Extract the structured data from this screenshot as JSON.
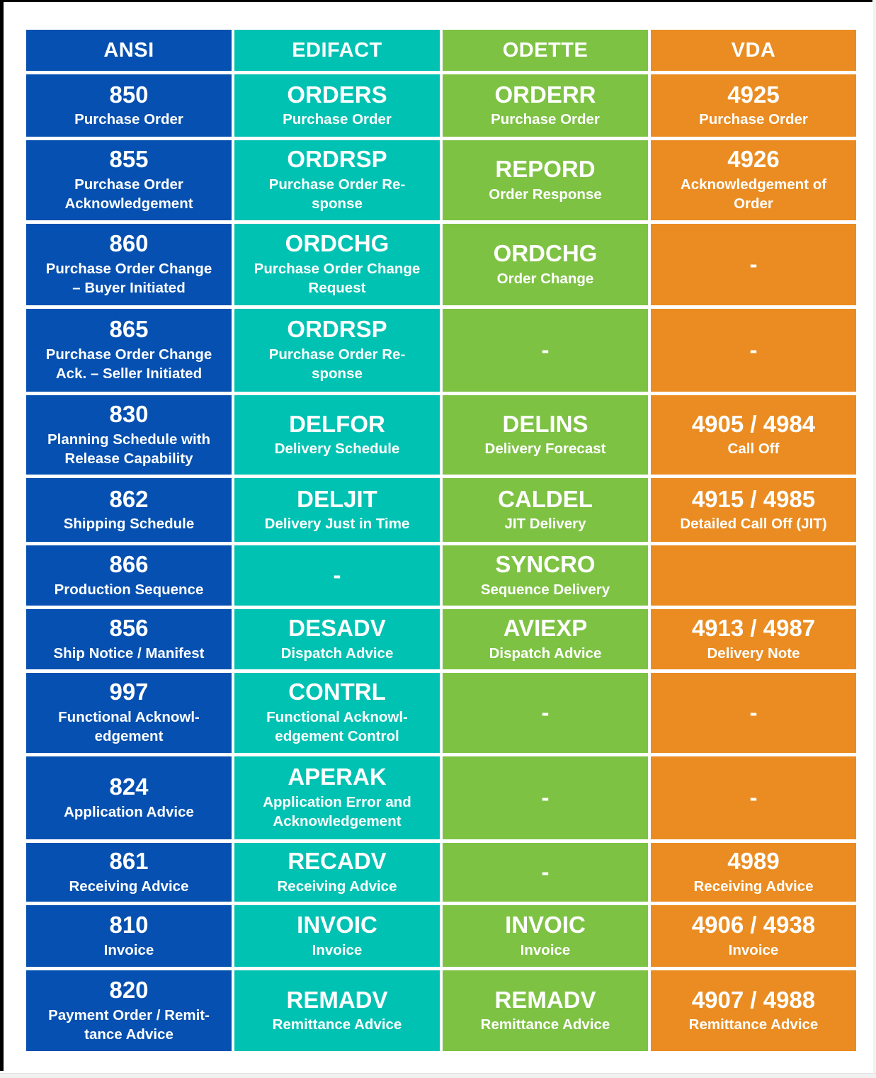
{
  "frame": {
    "edge_color": "#000000",
    "right_strip_color": "#f2f2f2",
    "bottom_strip_color": "#f0f0f0"
  },
  "table": {
    "columns": [
      {
        "id": "ansi",
        "label": "ANSI",
        "color": "#0550b0"
      },
      {
        "id": "edifact",
        "label": "EDIFACT",
        "color": "#00c2b2"
      },
      {
        "id": "odette",
        "label": "ODETTE",
        "color": "#7ec244"
      },
      {
        "id": "vda",
        "label": "VDA",
        "color": "#ea8c21"
      }
    ],
    "text_color": "#ffffff",
    "rows": [
      {
        "cells": [
          {
            "code": "850",
            "desc": "Purchase Order"
          },
          {
            "code": "ORDERS",
            "desc": "Purchase Order"
          },
          {
            "code": "ORDERR",
            "desc": "Purchase Order"
          },
          {
            "code": "4925",
            "desc": "Purchase Order"
          }
        ]
      },
      {
        "cells": [
          {
            "code": "855",
            "desc": "Purchase Order\nAcknowledgement"
          },
          {
            "code": "ORDRSP",
            "desc": "Purchase Order Re-\nsponse"
          },
          {
            "code": "REPORD",
            "desc": "Order Response"
          },
          {
            "code": "4926",
            "desc": "Acknowledgement of\nOrder"
          }
        ]
      },
      {
        "cells": [
          {
            "code": "860",
            "desc": "Purchase Order Change\n– Buyer Initiated"
          },
          {
            "code": "ORDCHG",
            "desc": "Purchase Order Change\nRequest"
          },
          {
            "code": "ORDCHG",
            "desc": "Order Change"
          },
          {
            "code": "-",
            "desc": ""
          }
        ]
      },
      {
        "cells": [
          {
            "code": "865",
            "desc": "Purchase Order Change\nAck. – Seller Initiated"
          },
          {
            "code": "ORDRSP",
            "desc": "Purchase Order Re-\nsponse"
          },
          {
            "code": "-",
            "desc": ""
          },
          {
            "code": "-",
            "desc": ""
          }
        ]
      },
      {
        "cells": [
          {
            "code": "830",
            "desc": "Planning Schedule with\nRelease Capability"
          },
          {
            "code": "DELFOR",
            "desc": "Delivery Schedule"
          },
          {
            "code": "DELINS",
            "desc": "Delivery Forecast"
          },
          {
            "code": "4905 / 4984",
            "desc": "Call Off"
          }
        ]
      },
      {
        "cells": [
          {
            "code": "862",
            "desc": "Shipping Schedule"
          },
          {
            "code": "DELJIT",
            "desc": "Delivery Just in Time"
          },
          {
            "code": "CALDEL",
            "desc": "JIT Delivery"
          },
          {
            "code": "4915 / 4985",
            "desc": "Detailed Call Off (JIT)"
          }
        ]
      },
      {
        "cells": [
          {
            "code": "866",
            "desc": "Production Sequence"
          },
          {
            "code": "-",
            "desc": ""
          },
          {
            "code": "SYNCRO",
            "desc": "Sequence Delivery"
          },
          {
            "code": "",
            "desc": ""
          }
        ]
      },
      {
        "cells": [
          {
            "code": "856",
            "desc": "Ship Notice / Manifest"
          },
          {
            "code": "DESADV",
            "desc": "Dispatch Advice"
          },
          {
            "code": "AVIEXP",
            "desc": "Dispatch Advice"
          },
          {
            "code": "4913 / 4987",
            "desc": "Delivery Note"
          }
        ]
      },
      {
        "cells": [
          {
            "code": "997",
            "desc": "Functional Acknowl-\nedgement"
          },
          {
            "code": "CONTRL",
            "desc": "Functional Acknowl-\nedgement Control"
          },
          {
            "code": "-",
            "desc": ""
          },
          {
            "code": "-",
            "desc": ""
          }
        ]
      },
      {
        "cells": [
          {
            "code": "824",
            "desc": "Application Advice"
          },
          {
            "code": "APERAK",
            "desc": "Application Error and\nAcknowledgement"
          },
          {
            "code": "-",
            "desc": ""
          },
          {
            "code": "-",
            "desc": ""
          }
        ]
      },
      {
        "cells": [
          {
            "code": "861",
            "desc": "Receiving Advice"
          },
          {
            "code": "RECADV",
            "desc": "Receiving Advice"
          },
          {
            "code": "-",
            "desc": ""
          },
          {
            "code": "4989",
            "desc": "Receiving Advice"
          }
        ]
      },
      {
        "cells": [
          {
            "code": "810",
            "desc": "Invoice"
          },
          {
            "code": "INVOIC",
            "desc": "Invoice"
          },
          {
            "code": "INVOIC",
            "desc": "Invoice"
          },
          {
            "code": "4906 / 4938",
            "desc": "Invoice"
          }
        ]
      },
      {
        "cells": [
          {
            "code": "820",
            "desc": "Payment Order / Remit-\ntance Advice"
          },
          {
            "code": "REMADV",
            "desc": "Remittance Advice"
          },
          {
            "code": "REMADV",
            "desc": "Remittance Advice"
          },
          {
            "code": "4907 / 4988",
            "desc": "Remittance Advice"
          }
        ]
      }
    ]
  }
}
